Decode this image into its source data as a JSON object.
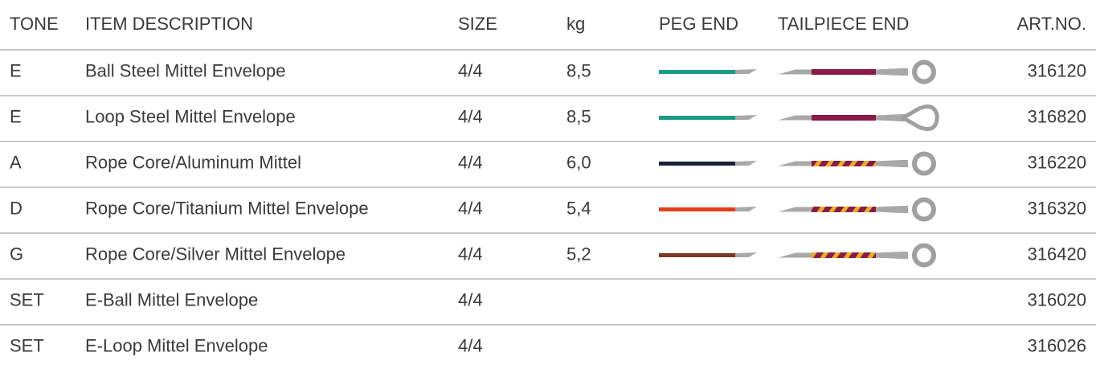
{
  "table": {
    "header": [
      "TONE",
      "ITEM DESCRIPTION",
      "SIZE",
      "kg",
      "PEG END",
      "TAILPIECE END",
      "ART.NO."
    ],
    "rows": [
      {
        "tone": "E",
        "description": "Ball Steel Mittel Envelope",
        "size": "4/4",
        "kg": "8,5",
        "art_no": "316120"
      },
      {
        "tone": "E",
        "description": "Loop Steel Mittel Envelope",
        "size": "4/4",
        "kg": "8,5",
        "art_no": "316820"
      },
      {
        "tone": "A",
        "description": "Rope Core/Aluminum Mittel",
        "size": "4/4",
        "kg": "6,0",
        "art_no": "316220"
      },
      {
        "tone": "D",
        "description": "Rope Core/Titanium Mittel Envelope",
        "size": "4/4",
        "kg": "5,4",
        "art_no": "316320"
      },
      {
        "tone": "G",
        "description": "Rope Core/Silver Mittel Envelope",
        "size": "4/4",
        "kg": "5,2",
        "art_no": "316420"
      },
      {
        "tone": "SET",
        "description": "E-Ball Mittel Envelope",
        "size": "4/4",
        "art_no": "316020"
      },
      {
        "tone": "SET",
        "description": "E-Loop Mittel Envelope",
        "size": "4/4",
        "art_no": "316026"
      }
    ]
  }
}
